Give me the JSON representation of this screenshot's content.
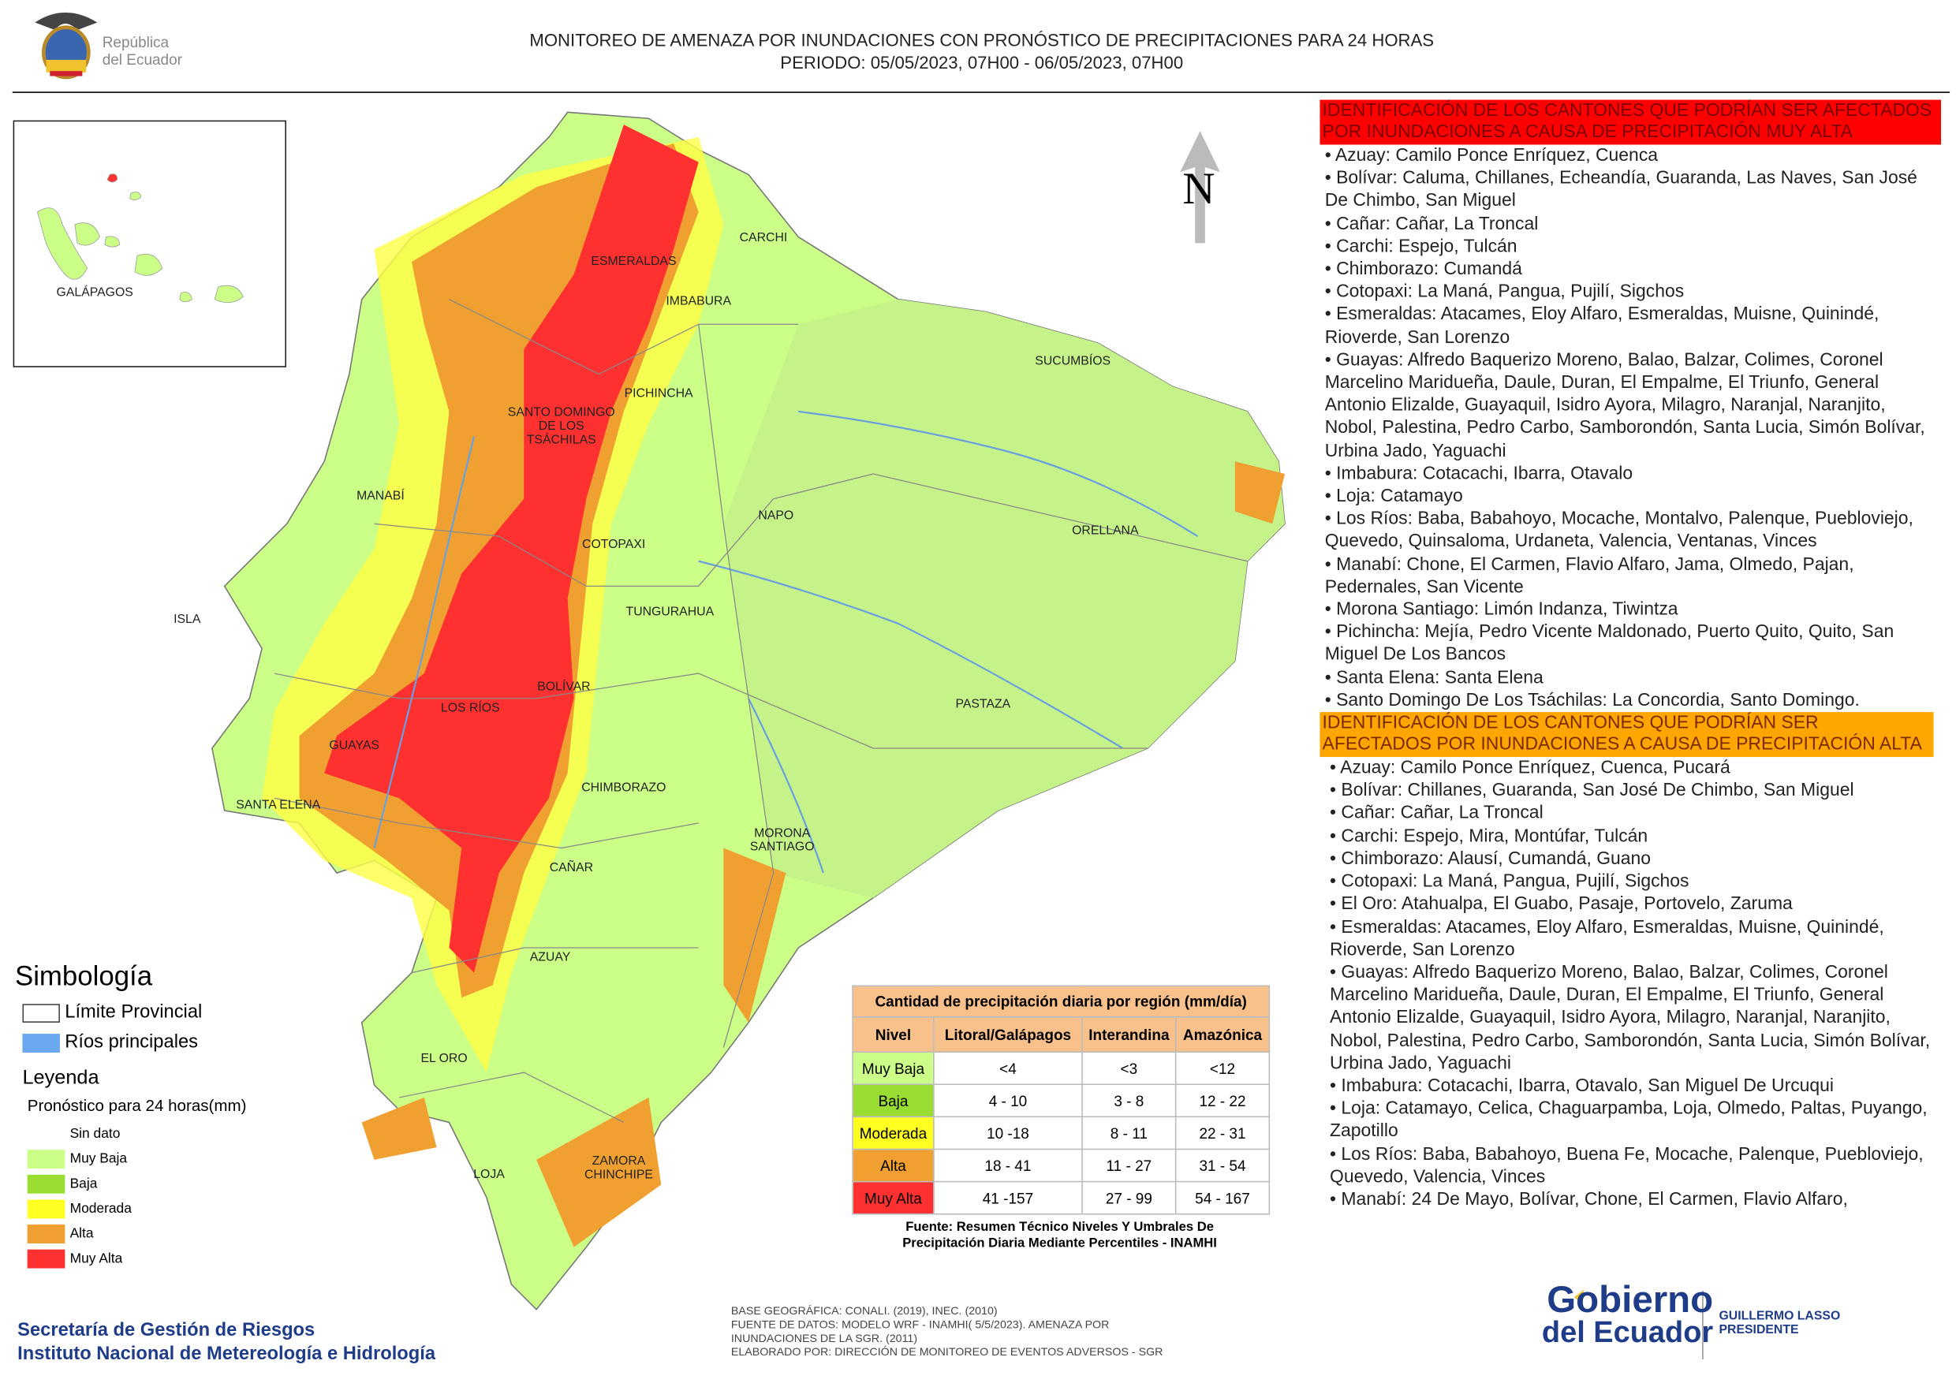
{
  "header": {
    "logo_lines": [
      "República",
      "del Ecuador"
    ],
    "title": "MONITOREO DE AMENAZA POR INUNDACIONES  CON PRONÓSTICO DE  PRECIPITACIONES PARA 24 HORAS",
    "period": "PERIODO: 05/05/2023, 07H00 - 06/05/2023, 07H00"
  },
  "map": {
    "north": "N",
    "inset_label": "GALÁPAGOS",
    "provinces": [
      "CARCHI",
      "ESMERALDAS",
      "IMBABURA",
      "SUCUMBÍOS",
      "PICHINCHA",
      "SANTO DOMINGO DE LOS TSÁCHILAS",
      "MANABÍ",
      "NAPO",
      "ORELLANA",
      "COTOPAXI",
      "ISLA",
      "TUNGURAHUA",
      "BOLÍVAR",
      "PASTAZA",
      "LOS RÍOS",
      "GUAYAS",
      "CHIMBORAZO",
      "SANTA ELENA",
      "MORONA SANTIAGO",
      "CAÑAR",
      "AZUAY",
      "EL ORO",
      "ZAMORA CHINCHIPE",
      "LOJA"
    ]
  },
  "panel": {
    "sections": [
      {
        "heading": "IDENTIFICACIÓN DE LOS CANTONES QUE PODRÍAN SER AFECTADOS POR INUNDACIONES  A CAUSA DE PRECIPITACIÓN MUY ALTA",
        "items": [
          "Azuay: Camilo Ponce Enríquez, Cuenca",
          "Bolívar: Caluma, Chillanes, Echeandía, Guaranda, Las Naves, San José De Chimbo, San Miguel",
          "Cañar: Cañar, La Troncal",
          "Carchi: Espejo, Tulcán",
          "Chimborazo: Cumandá",
          "Cotopaxi: La Maná, Pangua, Pujilí, Sigchos",
          "Esmeraldas: Atacames, Eloy Alfaro, Esmeraldas, Muisne, Quinindé, Rioverde, San Lorenzo",
          "Guayas: Alfredo Baquerizo Moreno, Balao, Balzar, Colimes, Coronel Marcelino Maridueña, Daule, Duran, El Empalme, El Triunfo, General Antonio Elizalde, Guayaquil, Isidro Ayora, Milagro, Naranjal, Naranjito, Nobol, Palestina, Pedro Carbo, Samborondón, Santa Lucia, Simón Bolívar, Urbina Jado, Yaguachi",
          "Imbabura: Cotacachi, Ibarra, Otavalo",
          "Loja: Catamayo",
          "Los Ríos: Baba, Babahoyo, Mocache, Montalvo, Palenque, Puebloviejo, Quevedo, Quinsaloma, Urdaneta, Valencia, Ventanas, Vinces",
          "Manabí: Chone, El Carmen, Flavio Alfaro, Jama, Olmedo, Pajan, Pedernales, San Vicente",
          "Morona Santiago: Limón Indanza, Tiwintza",
          "Pichincha: Mejía, Pedro Vicente Maldonado, Puerto Quito, Quito, San Miguel De Los Bancos",
          "Santa Elena: Santa Elena",
          "Santo Domingo De Los Tsáchilas: La Concordia, Santo Domingo."
        ]
      },
      {
        "heading": "IDENTIFICACIÓN DE LOS CANTONES QUE  PODRÍAN SER AFECTADOS POR INUNDACIONES  A CAUSA DE PRECIPITACIÓN ALTA",
        "items": [
          "Azuay: Camilo Ponce Enríquez, Cuenca, Pucará",
          "Bolívar: Chillanes, Guaranda, San José De Chimbo, San Miguel",
          "Cañar: Cañar, La Troncal",
          "Carchi: Espejo, Mira, Montúfar, Tulcán",
          "Chimborazo: Alausí, Cumandá, Guano",
          "Cotopaxi: La Maná, Pangua, Pujilí, Sigchos",
          "El Oro: Atahualpa, El Guabo, Pasaje, Portovelo, Zaruma",
          "Esmeraldas: Atacames, Eloy Alfaro, Esmeraldas, Muisne, Quinindé, Rioverde, San Lorenzo",
          "Guayas: Alfredo Baquerizo Moreno, Balao, Balzar, Colimes, Coronel Marcelino Maridueña, Daule, Duran, El Empalme, El Triunfo, General Antonio Elizalde, Guayaquil, Isidro Ayora, Milagro, Naranjal, Naranjito, Nobol, Palestina, Pedro Carbo, Samborondón, Santa Lucia, Simón Bolívar, Urbina Jado, Yaguachi",
          "Imbabura: Cotacachi, Ibarra, Otavalo, San Miguel De Urcuqui",
          "Loja: Catamayo, Celica, Chaguarpamba, Loja, Olmedo, Paltas, Puyango, Zapotillo",
          "Los Ríos: Baba, Babahoyo, Buena Fe, Mocache, Palenque, Puebloviejo, Quevedo, Valencia, Vinces",
          "Manabí: 24 De Mayo, Bolívar, Chone, El Carmen, Flavio Alfaro,"
        ]
      }
    ]
  },
  "legend": {
    "symbology_title": "Simbología",
    "symbols": [
      "Límite Provincial",
      "Ríos principales"
    ],
    "legend_title": "Leyenda",
    "subtitle": "Pronóstico para 24 horas(mm)",
    "levels": [
      "Sin dato",
      "Muy Baja",
      "Baja",
      "Moderada",
      "Alta",
      "Muy Alta"
    ]
  },
  "table": {
    "title": "Cantidad de precipitación diaria por región (mm/día)",
    "headers": [
      "Nivel",
      "Litoral/Galápagos",
      "Interandina",
      "Amazónica"
    ],
    "rows": [
      [
        "Muy Baja",
        "<4",
        "<3",
        "<12"
      ],
      [
        "Baja",
        "4 - 10",
        "3 - 8",
        "12 - 22"
      ],
      [
        "Moderada",
        "10 -18",
        "8 - 11",
        "22 - 31"
      ],
      [
        "Alta",
        "18 - 41",
        "11 - 27",
        "31 - 54"
      ],
      [
        "Muy Alta",
        "41 -157",
        "27 - 99",
        "54 - 167"
      ]
    ],
    "source": [
      "Fuente: Resumen Técnico Niveles Y Umbrales De",
      "Precipitación Diaria Mediante Percentiles - INAMHI"
    ]
  },
  "footer": {
    "orgs": [
      "Secretaría de Gestión de Riesgos",
      "Instituto Nacional de Metereología e Hidrología"
    ],
    "notes": [
      "BASE GEOGRÁFICA: CONALI. (2019), INEC. (2010)",
      "FUENTE DE DATOS: MODELO WRF - INAMHI( 5/5/2023).  AMENAZA POR",
      "INUNDACIONES DE LA SGR. (2011)",
      "ELABORADO POR: DIRECCIÓN DE MONITOREO DE EVENTOS ADVERSOS - SGR"
    ],
    "gov": [
      "Gobierno",
      "del Ecuador"
    ],
    "president": [
      "GUILLERMO LASSO",
      "PRESIDENTE"
    ]
  }
}
